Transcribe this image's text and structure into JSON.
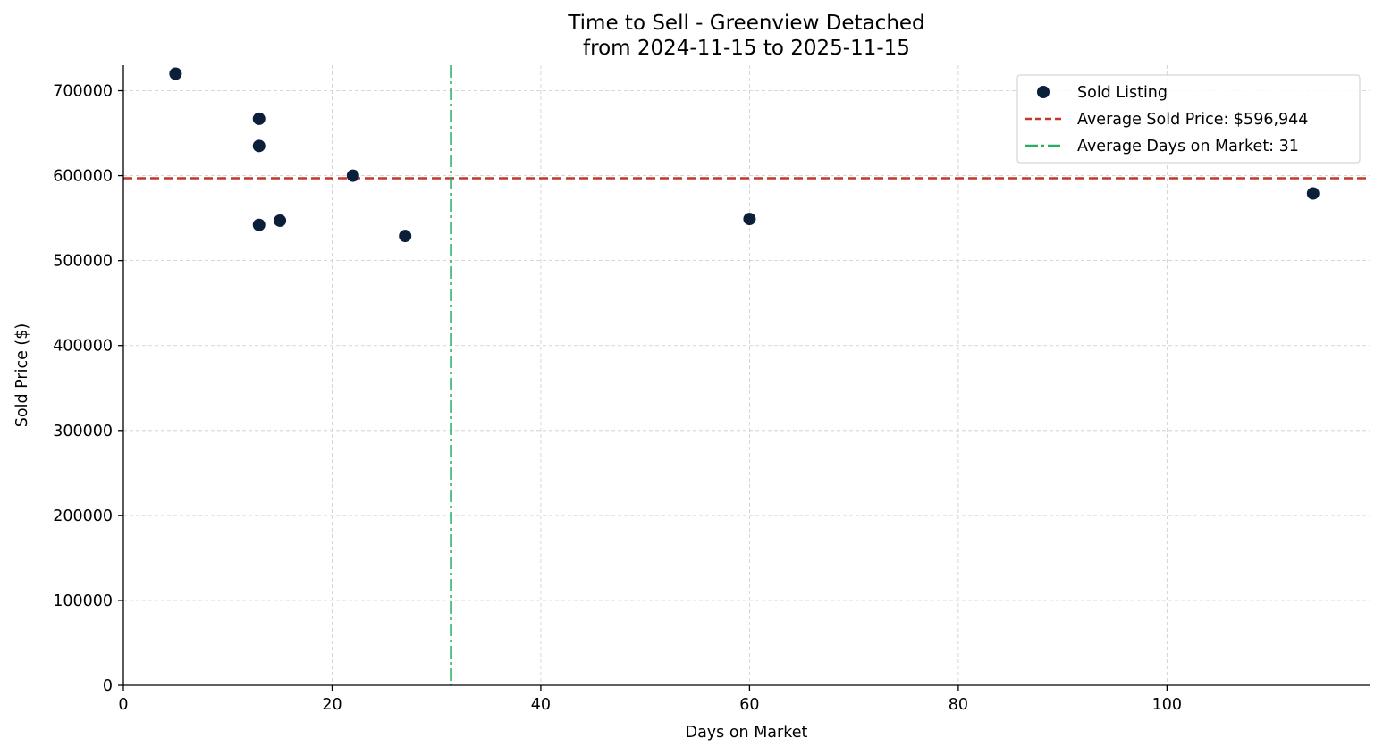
{
  "chart_data": {
    "type": "scatter",
    "title_lines": [
      "Time to Sell - Greenview Detached",
      "from 2024-11-15 to 2025-11-15"
    ],
    "xlabel": "Days on Market",
    "ylabel": "Sold Price ($)",
    "xlim": [
      0,
      119.5
    ],
    "ylim": [
      0,
      730000
    ],
    "x_ticks": [
      0,
      20,
      40,
      60,
      80,
      100
    ],
    "y_ticks": [
      0,
      100000,
      200000,
      300000,
      400000,
      500000,
      600000,
      700000
    ],
    "grid": true,
    "series": [
      {
        "name": "Sold Listing",
        "color": "#0b1e3a",
        "points": [
          {
            "x": 5,
            "y": 720000
          },
          {
            "x": 13,
            "y": 667000
          },
          {
            "x": 13,
            "y": 635000
          },
          {
            "x": 13,
            "y": 542000
          },
          {
            "x": 15,
            "y": 547000
          },
          {
            "x": 22,
            "y": 600000
          },
          {
            "x": 27,
            "y": 529000
          },
          {
            "x": 60,
            "y": 549000
          },
          {
            "x": 114,
            "y": 579000
          }
        ]
      }
    ],
    "reference_lines": [
      {
        "name": "Average Sold Price: $596,944",
        "orientation": "horizontal",
        "value": 596944,
        "color": "#c0392b",
        "style": "dashed"
      },
      {
        "name": "Average Days on Market: 31",
        "orientation": "vertical",
        "value": 31.4,
        "color": "#27ae60",
        "style": "dashdot"
      }
    ],
    "legend": {
      "position": "top-right",
      "entries": [
        "Sold Listing",
        "Average Sold Price: $596,944",
        "Average Days on Market: 31"
      ]
    }
  }
}
